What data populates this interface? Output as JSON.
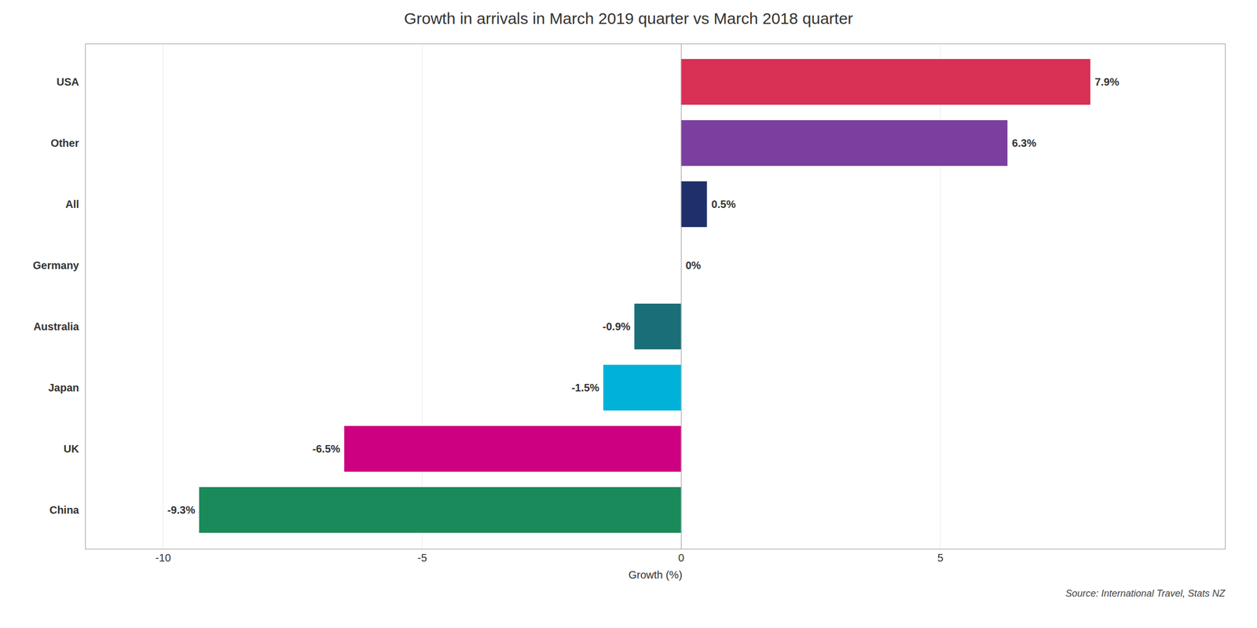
{
  "chart_data": {
    "type": "bar",
    "orientation": "horizontal",
    "title": "Growth in arrivals in March 2019 quarter vs March 2018 quarter",
    "categories": [
      "USA",
      "Other",
      "All",
      "Germany",
      "Australia",
      "Japan",
      "UK",
      "China"
    ],
    "values": [
      7.9,
      6.3,
      0.5,
      0.0,
      -0.9,
      -1.5,
      -6.5,
      -9.3
    ],
    "value_labels": [
      "7.9%",
      "6.3%",
      "0.5%",
      "0%",
      "-0.9%",
      "-1.5%",
      "-6.5%",
      "-9.3%"
    ],
    "data_labels": true,
    "colors": [
      "#d93055",
      "#7b3fa0",
      "#1e2f6b",
      "#8fbc00",
      "#1a6e78",
      "#00b2d8",
      "#cc0080",
      "#1a8a5a"
    ],
    "xlabel": "Growth (%)",
    "xlim": [
      -11.5,
      10.5
    ],
    "xticks": [
      -10,
      -5,
      0,
      5
    ],
    "grid": true,
    "annotations": [
      "Source: International Travel, Stats NZ"
    ]
  }
}
